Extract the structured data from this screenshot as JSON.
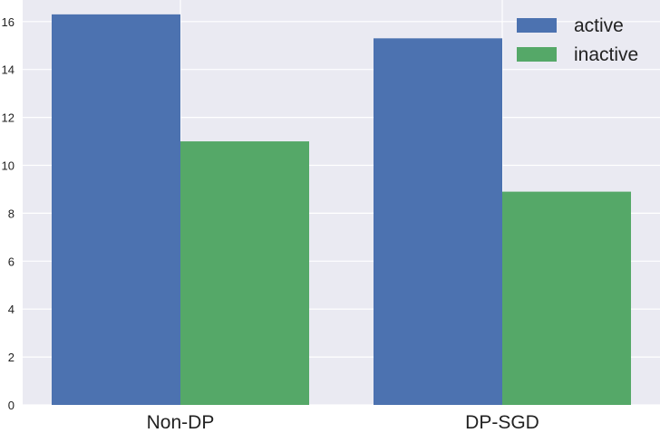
{
  "chart_data": {
    "type": "bar",
    "categories": [
      "Non-DP",
      "DP-SGD"
    ],
    "series": [
      {
        "name": "active",
        "values": [
          16.3,
          15.3
        ],
        "color": "#4c72b0"
      },
      {
        "name": "inactive",
        "values": [
          11.0,
          8.9
        ],
        "color": "#55a868"
      }
    ],
    "title": "",
    "xlabel": "",
    "ylabel": "",
    "ylim": [
      0,
      16.9
    ],
    "yticks": [
      "0",
      "2",
      "4",
      "6",
      "8",
      "10",
      "12",
      "14",
      "16"
    ],
    "grid": true,
    "legend_position": "top-right",
    "background_color": "#eaeaf2",
    "grid_color": "#ffffff"
  }
}
